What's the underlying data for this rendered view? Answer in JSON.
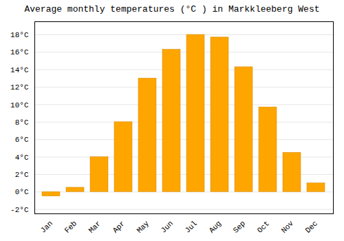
{
  "chart_data": {
    "type": "bar",
    "title": "Average monthly temperatures (°C ) in Markkleeberg West",
    "categories": [
      "Jan",
      "Feb",
      "Mar",
      "Apr",
      "May",
      "Jun",
      "Jul",
      "Aug",
      "Sep",
      "Oct",
      "Nov",
      "Dec"
    ],
    "values": [
      -0.5,
      0.5,
      4.0,
      8.0,
      13.0,
      16.3,
      18.0,
      17.7,
      14.3,
      9.7,
      4.5,
      1.0
    ],
    "color": "#FFA500",
    "ylim": [
      -2.5,
      19.5
    ],
    "yticks": [
      {
        "value": -2,
        "label": "-2°C"
      },
      {
        "value": 0,
        "label": "0°C"
      },
      {
        "value": 2,
        "label": "2°C"
      },
      {
        "value": 4,
        "label": "4°C"
      },
      {
        "value": 6,
        "label": "6°C"
      },
      {
        "value": 8,
        "label": "8°C"
      },
      {
        "value": 10,
        "label": "10°C"
      },
      {
        "value": 12,
        "label": "12°C"
      },
      {
        "value": 14,
        "label": "14°C"
      },
      {
        "value": 16,
        "label": "16°C"
      },
      {
        "value": 18,
        "label": "18°C"
      }
    ],
    "grid": true
  }
}
